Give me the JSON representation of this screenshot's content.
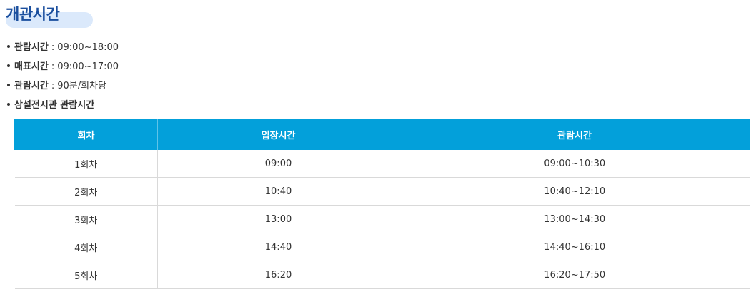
{
  "page_title": "개관시간",
  "info": [
    {
      "key": "관람시간",
      "sep": ":",
      "value": "09:00~18:00"
    },
    {
      "key": "매표시간",
      "sep": ":",
      "value": "09:00~17:00"
    },
    {
      "key": "관람시간",
      "sep": ":",
      "value": "90분/회차당"
    },
    {
      "key": "상설전시관 관람시간",
      "sep": "",
      "value": ""
    }
  ],
  "table": {
    "headers": [
      "회차",
      "입장시간",
      "관람시간"
    ],
    "rows": [
      [
        "1회차",
        "09:00",
        "09:00~10:30"
      ],
      [
        "2회차",
        "10:40",
        "10:40~12:10"
      ],
      [
        "3회차",
        "13:00",
        "13:00~14:30"
      ],
      [
        "4회차",
        "14:40",
        "14:40~16:10"
      ],
      [
        "5회차",
        "16:20",
        "16:20~17:50"
      ]
    ]
  },
  "colors": {
    "title": "#1b4f9e",
    "title_highlight": "#dbe9fb",
    "table_header": "#03a0da"
  }
}
